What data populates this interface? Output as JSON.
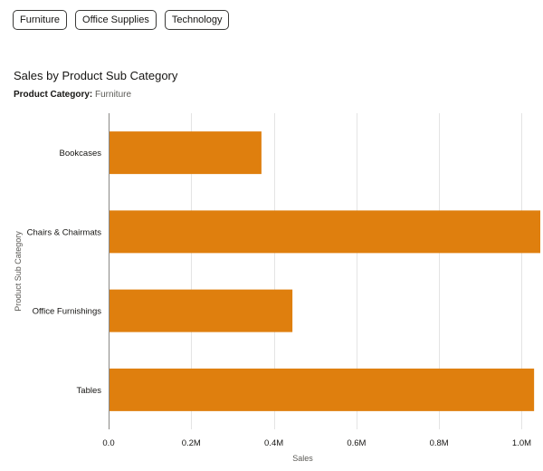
{
  "filters": [
    {
      "label": "Furniture"
    },
    {
      "label": "Office Supplies"
    },
    {
      "label": "Technology"
    }
  ],
  "chart_data": {
    "type": "bar",
    "orientation": "horizontal",
    "title": "Sales by Product Sub Category",
    "subtitle_label": "Product Category:",
    "subtitle_value": "Furniture",
    "xlabel": "Sales",
    "ylabel": "Product Sub Category",
    "categories": [
      "Bookcases",
      "Chairs & Chairmats",
      "Office Furnishings",
      "Tables"
    ],
    "values": [
      370000,
      1045000,
      445000,
      1030000
    ],
    "xlim": [
      0,
      1045000
    ],
    "xticks": [
      0,
      200000,
      400000,
      600000,
      800000,
      1000000
    ],
    "xtick_labels": [
      "0.0",
      "0.2M",
      "0.4M",
      "0.6M",
      "0.8M",
      "1.0M"
    ],
    "grid": true,
    "bar_color": "#df7f0e",
    "grid_color": "#e4e4e4",
    "axis_color": "#8a8986"
  }
}
